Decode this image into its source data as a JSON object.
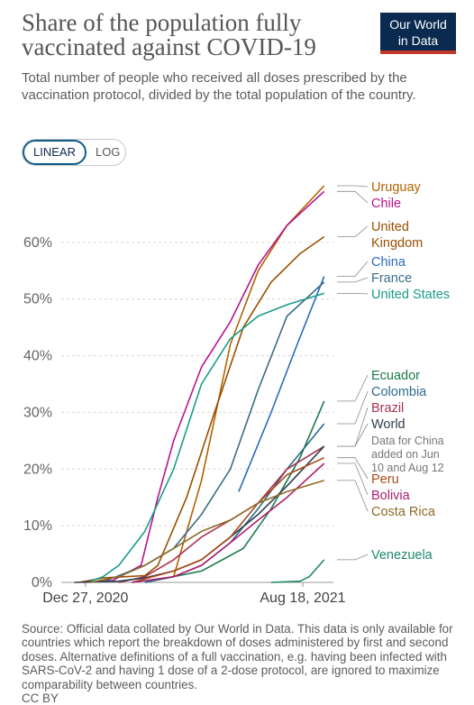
{
  "header": {
    "title": "Share of the population fully vaccinated against COVID-19",
    "logo_line1": "Our World",
    "logo_line2": "in Data",
    "subtitle": "Total number of people who received all doses prescribed by the vaccination protocol, divided by the total population of the country."
  },
  "controls": {
    "linear_label": "LINEAR",
    "log_label": "LOG",
    "selected": "LINEAR"
  },
  "footer": {
    "source": "Source: Official data collated by Our World in Data. This data is only available for countries which report the breakdown of doses administered by first and second doses. Alternative definitions of a full vaccination, e.g. having been infected with SARS-CoV-2 and having 1 dose of a 2-dose protocol, are ignored to maximize comparability between countries.",
    "license": "CC BY"
  },
  "chart_data": {
    "type": "line",
    "title": "Share of the population fully vaccinated against COVID-19",
    "ylabel": "",
    "xlabel": "",
    "ylim": [
      0,
      70
    ],
    "xlim": [
      "2020-12-01",
      "2021-09-20"
    ],
    "yticks": [
      0,
      10,
      20,
      30,
      40,
      50,
      60
    ],
    "yticklabels": [
      "0%",
      "10%",
      "20%",
      "30%",
      "40%",
      "50%",
      "60%"
    ],
    "xticks": [
      "2020-12-27",
      "2021-08-18"
    ],
    "xticklabels": [
      "Dec 27, 2020",
      "Aug 18, 2021"
    ],
    "grid": true,
    "legend": "right, direct labels at line ends",
    "annotations": [
      "Data for China added on Jun 10 and Aug 12"
    ],
    "series": [
      {
        "name": "Uruguay",
        "color": "#b36200",
        "points": [
          [
            "2021-03-01",
            0
          ],
          [
            "2021-04-01",
            1
          ],
          [
            "2021-05-01",
            18
          ],
          [
            "2021-06-01",
            42
          ],
          [
            "2021-07-01",
            55
          ],
          [
            "2021-08-01",
            63
          ],
          [
            "2021-09-10",
            70
          ]
        ]
      },
      {
        "name": "Chile",
        "color": "#b8148c",
        "points": [
          [
            "2020-12-24",
            0
          ],
          [
            "2021-01-25",
            0.3
          ],
          [
            "2021-02-25",
            3
          ],
          [
            "2021-03-15",
            15
          ],
          [
            "2021-04-01",
            25
          ],
          [
            "2021-05-01",
            38
          ],
          [
            "2021-06-01",
            46
          ],
          [
            "2021-07-01",
            56
          ],
          [
            "2021-08-01",
            63
          ],
          [
            "2021-09-10",
            69
          ]
        ]
      },
      {
        "name": "United Kingdom",
        "color": "#9a4e00",
        "points": [
          [
            "2020-12-20",
            0
          ],
          [
            "2021-01-15",
            0.8
          ],
          [
            "2021-03-01",
            1.2
          ],
          [
            "2021-03-15",
            3
          ],
          [
            "2021-04-15",
            15
          ],
          [
            "2021-05-15",
            30
          ],
          [
            "2021-06-15",
            45
          ],
          [
            "2021-07-15",
            53
          ],
          [
            "2021-08-15",
            58
          ],
          [
            "2021-09-10",
            61
          ]
        ]
      },
      {
        "name": "China",
        "color": "#286bbb",
        "points": [
          [
            "2021-06-10",
            16
          ],
          [
            "2021-07-15",
            30
          ],
          [
            "2021-08-12",
            42
          ],
          [
            "2021-09-10",
            54
          ]
        ]
      },
      {
        "name": "France",
        "color": "#3a6d87",
        "points": [
          [
            "2021-01-15",
            0.1
          ],
          [
            "2021-03-01",
            3
          ],
          [
            "2021-04-01",
            6
          ],
          [
            "2021-05-01",
            12
          ],
          [
            "2021-06-01",
            20
          ],
          [
            "2021-07-01",
            34
          ],
          [
            "2021-08-01",
            47
          ],
          [
            "2021-09-10",
            53
          ]
        ]
      },
      {
        "name": "United States",
        "color": "#1a9b8a",
        "points": [
          [
            "2020-12-28",
            0
          ],
          [
            "2021-01-15",
            1
          ],
          [
            "2021-02-01",
            3
          ],
          [
            "2021-03-01",
            9
          ],
          [
            "2021-04-01",
            20
          ],
          [
            "2021-05-01",
            35
          ],
          [
            "2021-06-01",
            43
          ],
          [
            "2021-07-01",
            47
          ],
          [
            "2021-08-01",
            49
          ],
          [
            "2021-09-10",
            51
          ]
        ]
      },
      {
        "name": "Ecuador",
        "color": "#1a7a4c",
        "points": [
          [
            "2021-03-01",
            0
          ],
          [
            "2021-05-01",
            2
          ],
          [
            "2021-06-15",
            6
          ],
          [
            "2021-07-15",
            13
          ],
          [
            "2021-08-15",
            22
          ],
          [
            "2021-09-10",
            32
          ]
        ]
      },
      {
        "name": "Colombia",
        "color": "#2b6b8f",
        "points": [
          [
            "2021-03-01",
            0
          ],
          [
            "2021-04-01",
            1
          ],
          [
            "2021-05-01",
            3
          ],
          [
            "2021-06-01",
            7
          ],
          [
            "2021-07-01",
            13
          ],
          [
            "2021-08-01",
            20
          ],
          [
            "2021-09-10",
            28
          ]
        ]
      },
      {
        "name": "Brazil",
        "color": "#a83250",
        "points": [
          [
            "2021-02-01",
            0
          ],
          [
            "2021-03-01",
            1
          ],
          [
            "2021-04-01",
            4
          ],
          [
            "2021-05-01",
            8
          ],
          [
            "2021-06-01",
            11
          ],
          [
            "2021-07-01",
            14
          ],
          [
            "2021-08-01",
            20
          ],
          [
            "2021-09-10",
            24
          ]
        ]
      },
      {
        "name": "World",
        "color": "#2d3e50",
        "points": [
          [
            "2020-12-15",
            0
          ],
          [
            "2021-02-01",
            0.2
          ],
          [
            "2021-03-01",
            0.8
          ],
          [
            "2021-04-01",
            2
          ],
          [
            "2021-05-01",
            4
          ],
          [
            "2021-06-01",
            8
          ],
          [
            "2021-07-01",
            12
          ],
          [
            "2021-08-01",
            17
          ],
          [
            "2021-09-10",
            24
          ]
        ]
      },
      {
        "name": "Peru",
        "color": "#a84a17",
        "points": [
          [
            "2021-02-15",
            0
          ],
          [
            "2021-04-01",
            2
          ],
          [
            "2021-05-01",
            4
          ],
          [
            "2021-06-01",
            8
          ],
          [
            "2021-07-01",
            14
          ],
          [
            "2021-08-01",
            19
          ],
          [
            "2021-09-10",
            22
          ]
        ]
      },
      {
        "name": "Bolivia",
        "color": "#ac1f6d",
        "points": [
          [
            "2021-02-15",
            0
          ],
          [
            "2021-04-01",
            1
          ],
          [
            "2021-05-01",
            3
          ],
          [
            "2021-06-01",
            7
          ],
          [
            "2021-07-01",
            11
          ],
          [
            "2021-08-01",
            15
          ],
          [
            "2021-09-10",
            21
          ]
        ]
      },
      {
        "name": "Costa Rica",
        "color": "#8d6a26",
        "points": [
          [
            "2021-01-01",
            0
          ],
          [
            "2021-02-01",
            1
          ],
          [
            "2021-03-01",
            3
          ],
          [
            "2021-04-01",
            6
          ],
          [
            "2021-05-01",
            9
          ],
          [
            "2021-06-01",
            11
          ],
          [
            "2021-07-01",
            14
          ],
          [
            "2021-08-01",
            16
          ],
          [
            "2021-09-10",
            18
          ]
        ]
      },
      {
        "name": "Venezuela",
        "color": "#1a8a6a",
        "points": [
          [
            "2021-07-15",
            0
          ],
          [
            "2021-08-15",
            0.2
          ],
          [
            "2021-08-25",
            1
          ],
          [
            "2021-09-10",
            4
          ]
        ]
      }
    ]
  }
}
